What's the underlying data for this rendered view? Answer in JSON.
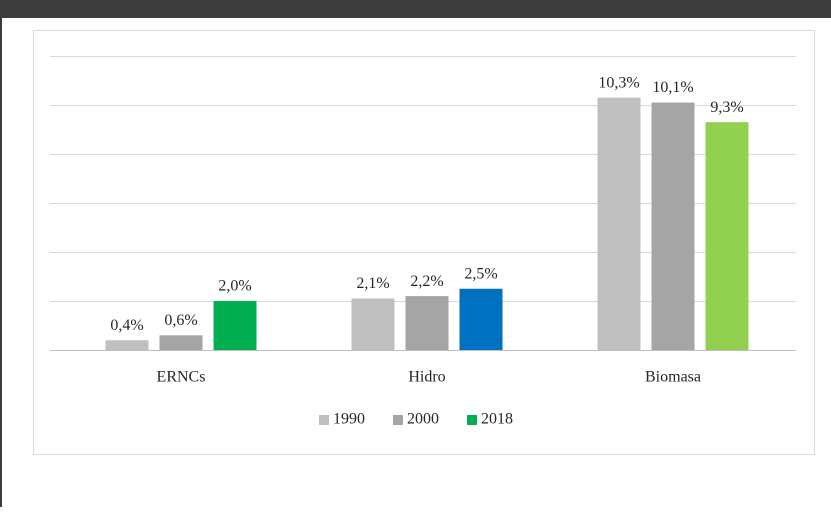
{
  "chart_data": {
    "type": "bar",
    "categories": [
      "ERNCs",
      "Hidro",
      "Biomasa"
    ],
    "series": [
      {
        "name": "1990",
        "color": "#bfbfbf",
        "values": [
          0.4,
          2.1,
          10.3
        ],
        "value_labels": [
          "0,4%",
          "2,1%",
          "10,3%"
        ]
      },
      {
        "name": "2000",
        "color": "#a5a5a5",
        "values": [
          0.6,
          2.2,
          10.1
        ],
        "value_labels": [
          "0,6%",
          "2,2%",
          "10,1%"
        ]
      },
      {
        "name": "2018",
        "color": "#00b050",
        "colors": [
          "#00b050",
          "#0070c0",
          "#92d050"
        ],
        "values": [
          2.0,
          2.5,
          9.3
        ],
        "value_labels": [
          "2,0%",
          "2,5%",
          "9,3%"
        ]
      }
    ],
    "ylim": [
      0,
      12
    ],
    "yticks": [
      0,
      2,
      4,
      6,
      8,
      10,
      12
    ],
    "grid": true,
    "legend": "bottom"
  }
}
